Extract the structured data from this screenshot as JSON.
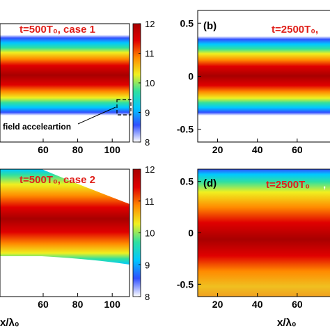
{
  "chart_data": [
    {
      "type": "heatmap",
      "panel": "a",
      "label": "",
      "annotation": "t=500T₀, case 1",
      "x_ticks": [
        60,
        80,
        100
      ],
      "y_ticks": [],
      "xlabel": "",
      "colorbar": {
        "ticks": [
          8,
          9,
          10,
          11,
          12
        ],
        "range": [
          8,
          12
        ]
      },
      "callout": "field acceleartion",
      "profile": "symmetric-beam-narrow"
    },
    {
      "type": "heatmap",
      "panel": "b",
      "label": "(b)",
      "annotation": "t=2500T₀,",
      "x_ticks": [
        20,
        40,
        60
      ],
      "y_ticks": [
        0.5,
        0,
        -0.5
      ],
      "xlabel": "",
      "profile": "symmetric-beam-narrow"
    },
    {
      "type": "heatmap",
      "panel": "c",
      "label": "",
      "annotation": "t=500T₀, case 2",
      "x_ticks": [
        60,
        80,
        100
      ],
      "y_ticks": [],
      "xlabel": "x/λ₀",
      "colorbar": {
        "ticks": [
          8,
          9,
          10,
          11,
          12
        ],
        "range": [
          8,
          12
        ]
      },
      "profile": "tapered-beam"
    },
    {
      "type": "heatmap",
      "panel": "d",
      "label": "(d)",
      "annotation": "t=2500T₀",
      "annotation_trailing": ",",
      "x_ticks": [
        20,
        40,
        60
      ],
      "y_ticks": [
        0.5,
        0,
        -0.5
      ],
      "xlabel": "x/λ₀",
      "profile": "broad-beam"
    }
  ],
  "colors": {
    "annotation": "#e0201a",
    "colormap": [
      "#ffffff",
      "#3050ff",
      "#00c8ff",
      "#30e0a0",
      "#f0f020",
      "#ff8a00",
      "#e00000",
      "#a80000"
    ]
  }
}
